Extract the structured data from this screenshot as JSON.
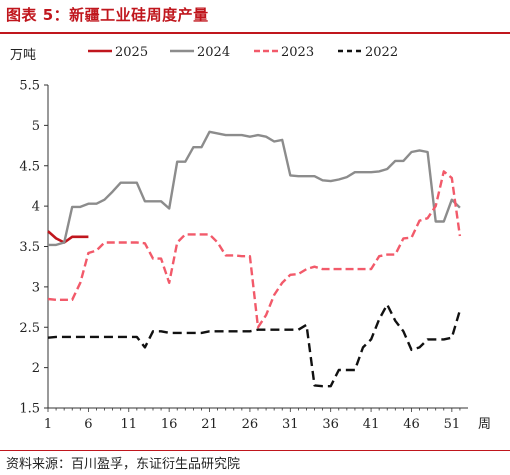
{
  "header": {
    "title": "图表 5：新疆工业硅周度产量"
  },
  "footer": {
    "source": "资料来源：百川盈孚，东证衍生品研究院"
  },
  "chart_data": {
    "type": "line",
    "ylabel": "万吨",
    "xlabel": "周",
    "xlim": [
      1,
      53
    ],
    "ylim": [
      1.5,
      5.5
    ],
    "xticks": [
      1,
      6,
      11,
      16,
      21,
      26,
      31,
      36,
      41,
      46,
      51
    ],
    "yticks": [
      1.5,
      2,
      2.5,
      3,
      3.5,
      4,
      4.5,
      5,
      5.5
    ],
    "ytick_labels": [
      "1.5",
      "2",
      "2.5",
      "3",
      "3.5",
      "4",
      "4.5",
      "5",
      "5.5"
    ],
    "legend_position": "top",
    "series": [
      {
        "name": "2025",
        "color": "#c0161d",
        "dash": "solid",
        "x": [
          1,
          2,
          3,
          4,
          5,
          6
        ],
        "y": [
          3.69,
          3.6,
          3.55,
          3.62,
          3.62,
          3.62
        ]
      },
      {
        "name": "2024",
        "color": "#8c8c8c",
        "dash": "solid",
        "x": [
          1,
          2,
          3,
          4,
          5,
          6,
          7,
          8,
          9,
          10,
          11,
          12,
          13,
          14,
          15,
          16,
          17,
          18,
          19,
          20,
          21,
          22,
          23,
          24,
          25,
          26,
          27,
          28,
          29,
          30,
          31,
          32,
          33,
          34,
          35,
          36,
          37,
          38,
          39,
          40,
          41,
          42,
          43,
          44,
          45,
          46,
          47,
          48,
          49,
          50,
          51,
          52
        ],
        "y": [
          3.52,
          3.52,
          3.55,
          3.99,
          3.99,
          4.03,
          4.03,
          4.08,
          4.18,
          4.29,
          4.29,
          4.29,
          4.06,
          4.06,
          4.06,
          3.97,
          4.55,
          4.55,
          4.73,
          4.73,
          4.92,
          4.9,
          4.88,
          4.88,
          4.88,
          4.86,
          4.88,
          4.86,
          4.8,
          4.82,
          4.38,
          4.37,
          4.37,
          4.37,
          4.32,
          4.31,
          4.33,
          4.36,
          4.42,
          4.42,
          4.42,
          4.43,
          4.46,
          4.56,
          4.56,
          4.67,
          4.69,
          4.67,
          3.81,
          3.81,
          4.08,
          3.98
        ]
      },
      {
        "name": "2023",
        "color": "#f25a6a",
        "dash": "dashed",
        "x": [
          1,
          2,
          3,
          4,
          5,
          6,
          7,
          8,
          9,
          10,
          11,
          12,
          13,
          14,
          15,
          16,
          17,
          18,
          19,
          20,
          21,
          22,
          23,
          24,
          25,
          26,
          27,
          28,
          29,
          30,
          31,
          32,
          33,
          34,
          35,
          36,
          37,
          38,
          39,
          40,
          41,
          42,
          43,
          44,
          45,
          46,
          47,
          48,
          49,
          50,
          51,
          52
        ],
        "y": [
          2.85,
          2.84,
          2.84,
          2.84,
          3.05,
          3.42,
          3.45,
          3.55,
          3.55,
          3.55,
          3.55,
          3.55,
          3.54,
          3.35,
          3.35,
          3.05,
          3.55,
          3.65,
          3.65,
          3.65,
          3.65,
          3.55,
          3.39,
          3.39,
          3.38,
          3.38,
          2.5,
          2.65,
          2.9,
          3.05,
          3.15,
          3.16,
          3.22,
          3.25,
          3.22,
          3.22,
          3.22,
          3.22,
          3.22,
          3.22,
          3.22,
          3.38,
          3.4,
          3.4,
          3.6,
          3.61,
          3.82,
          3.85,
          4.0,
          4.43,
          4.35,
          3.63
        ]
      },
      {
        "name": "2022",
        "color": "#111111",
        "dash": "dashed",
        "x": [
          1,
          2,
          3,
          4,
          5,
          6,
          7,
          8,
          9,
          10,
          11,
          12,
          13,
          14,
          15,
          16,
          17,
          18,
          19,
          20,
          21,
          22,
          23,
          24,
          25,
          26,
          27,
          28,
          29,
          30,
          31,
          32,
          33,
          34,
          35,
          36,
          37,
          38,
          39,
          40,
          41,
          42,
          43,
          44,
          45,
          46,
          47,
          48,
          49,
          50,
          51,
          52
        ],
        "y": [
          2.37,
          2.38,
          2.38,
          2.38,
          2.38,
          2.38,
          2.38,
          2.38,
          2.38,
          2.38,
          2.38,
          2.38,
          2.25,
          2.45,
          2.45,
          2.43,
          2.43,
          2.43,
          2.43,
          2.43,
          2.45,
          2.45,
          2.45,
          2.45,
          2.45,
          2.45,
          2.47,
          2.47,
          2.47,
          2.47,
          2.47,
          2.47,
          2.53,
          1.78,
          1.77,
          1.77,
          1.97,
          1.97,
          1.97,
          2.25,
          2.35,
          2.6,
          2.78,
          2.58,
          2.45,
          2.22,
          2.25,
          2.35,
          2.35,
          2.35,
          2.37,
          2.71
        ]
      }
    ]
  }
}
